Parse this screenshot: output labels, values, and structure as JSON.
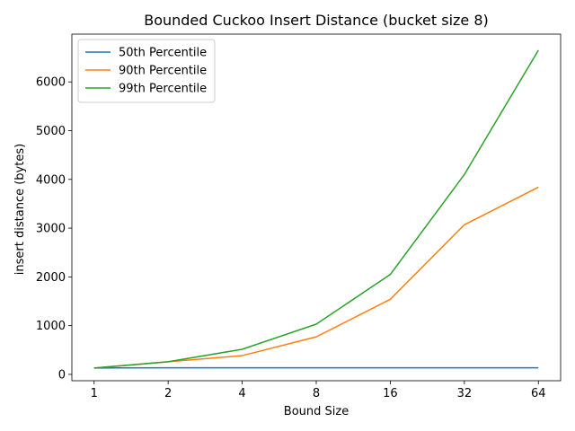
{
  "chart_data": {
    "type": "line",
    "title": "Bounded Cuckoo Insert Distance (bucket size 8)",
    "xlabel": "Bound Size",
    "ylabel": "insert distance (bytes)",
    "x_scale": "log2",
    "categories": [
      "1",
      "2",
      "4",
      "8",
      "16",
      "32",
      "64"
    ],
    "x": [
      1,
      2,
      4,
      8,
      16,
      32,
      64
    ],
    "ylim": [
      -130,
      6980
    ],
    "yticks": [
      0,
      1000,
      2000,
      3000,
      4000,
      5000,
      6000
    ],
    "grid": false,
    "legend_position": "upper left",
    "series": [
      {
        "name": "50th Percentile",
        "color": "#1f77b4",
        "values": [
          130,
          135,
          135,
          135,
          135,
          135,
          135
        ]
      },
      {
        "name": "90th Percentile",
        "color": "#ff7f0e",
        "values": [
          130,
          260,
          385,
          770,
          1540,
          3070,
          3840
        ]
      },
      {
        "name": "99th Percentile",
        "color": "#2ca02c",
        "values": [
          130,
          260,
          515,
          1030,
          2050,
          4100,
          6650
        ]
      }
    ]
  }
}
